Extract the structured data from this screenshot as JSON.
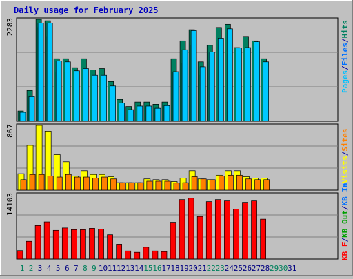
{
  "chart_data": [
    {
      "type": "bar",
      "title": "Daily usage for February 2025",
      "ymax_label": "2283",
      "legend": [
        {
          "label": "Pages",
          "color": "#00c0ff"
        },
        {
          "label": "/",
          "color": "#0000a0"
        },
        {
          "label": "Files",
          "color": "#0070ff"
        },
        {
          "label": "/",
          "color": "#0000a0"
        },
        {
          "label": "Hits",
          "color": "#008060"
        }
      ],
      "colors": {
        "hits": "#008060",
        "files": "#0060e0",
        "pages": "#00c8ff"
      },
      "days": [
        1,
        2,
        3,
        4,
        5,
        6,
        7,
        8,
        9,
        10,
        11,
        12,
        13,
        14,
        15,
        16,
        17,
        18,
        19,
        20,
        21,
        22,
        23,
        24,
        25,
        26,
        27,
        28
      ],
      "series": [
        {
          "name": "Hits",
          "values": [
            230,
            690,
            2283,
            2250,
            1400,
            1400,
            1200,
            1400,
            1150,
            1180,
            890,
            490,
            330,
            430,
            430,
            380,
            430,
            1400,
            1800,
            2050,
            1330,
            1700,
            2100,
            2170,
            1650,
            1900,
            1800,
            1400
          ]
        },
        {
          "name": "Files",
          "values": [
            200,
            550,
            2100,
            1900,
            1100,
            1100,
            960,
            1050,
            890,
            940,
            690,
            400,
            230,
            330,
            300,
            290,
            330,
            1100,
            1300,
            1700,
            1030,
            1330,
            1730,
            1500,
            1330,
            1580,
            1500,
            1130
          ]
        },
        {
          "name": "Pages",
          "values": [
            200,
            550,
            2200,
            2200,
            1350,
            1330,
            1130,
            1180,
            1030,
            1030,
            790,
            410,
            260,
            340,
            340,
            290,
            350,
            1110,
            1600,
            2030,
            1220,
            1550,
            1860,
            2070,
            1640,
            1650,
            1780,
            1330
          ]
        }
      ]
    },
    {
      "type": "bar",
      "ymax_label": "867",
      "legend": [
        {
          "label": "Visits",
          "color": "#ffff00"
        },
        {
          "label": "/",
          "color": "#0000a0"
        },
        {
          "label": "Sites",
          "color": "#ff8000"
        }
      ],
      "colors": {
        "visits": "#ffff00",
        "sites": "#ff8000"
      },
      "days": [
        1,
        2,
        3,
        4,
        5,
        6,
        7,
        8,
        9,
        10,
        11,
        12,
        13,
        14,
        15,
        16,
        17,
        18,
        19,
        20,
        21,
        22,
        23,
        24,
        25,
        26,
        27,
        28
      ],
      "series": [
        {
          "name": "Visits",
          "values": [
            220,
            600,
            867,
            790,
            475,
            380,
            190,
            260,
            210,
            210,
            180,
            100,
            100,
            100,
            150,
            140,
            140,
            115,
            160,
            260,
            150,
            140,
            200,
            260,
            260,
            180,
            160,
            160
          ]
        },
        {
          "name": "Sites",
          "values": [
            140,
            210,
            210,
            190,
            175,
            210,
            175,
            175,
            160,
            175,
            150,
            100,
            100,
            100,
            120,
            120,
            120,
            95,
            100,
            180,
            150,
            140,
            190,
            200,
            200,
            150,
            140,
            140
          ]
        }
      ]
    },
    {
      "type": "bar",
      "ymax_label": "14103",
      "legend": [
        {
          "label": "KB F",
          "color": "#ff0000"
        },
        {
          "label": "/",
          "color": "#0000a0"
        },
        {
          "label": "KB Out",
          "color": "#00a000"
        },
        {
          "label": "/",
          "color": "#0000a0"
        },
        {
          "label": "KB In",
          "color": "#0070ff"
        }
      ],
      "colors": {
        "kbf": "#ff0000"
      },
      "days": [
        1,
        2,
        3,
        4,
        5,
        6,
        7,
        8,
        9,
        10,
        11,
        12,
        13,
        14,
        15,
        16,
        17,
        18,
        19,
        20,
        21,
        22,
        23,
        24,
        25,
        26,
        27,
        28
      ],
      "series": [
        {
          "name": "KB F",
          "values": [
            1500,
            3150,
            5950,
            6600,
            5100,
            5520,
            5220,
            5220,
            5460,
            5340,
            4320,
            2640,
            1440,
            1200,
            2100,
            1440,
            1320,
            6540,
            10560,
            10800,
            7560,
            10200,
            10560,
            10320,
            8880,
            10080,
            10320,
            7080
          ]
        }
      ]
    }
  ],
  "x_axis": {
    "labels": [
      "1",
      "2",
      "3",
      "4",
      "5",
      "6",
      "7",
      "8",
      "9",
      "10",
      "11",
      "12",
      "13",
      "14",
      "15",
      "16",
      "17",
      "18",
      "19",
      "20",
      "21",
      "22",
      "23",
      "24",
      "25",
      "26",
      "27",
      "28",
      "29",
      "30",
      "31"
    ],
    "weekend_color": "#00805c",
    "weekday_color": "#000080",
    "weekend_days": [
      1,
      2,
      8,
      9,
      15,
      16,
      22,
      23,
      29,
      30
    ]
  }
}
